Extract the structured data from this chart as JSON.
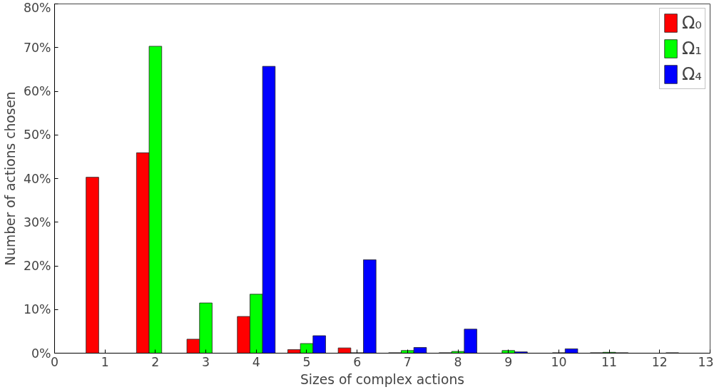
{
  "chart_data": {
    "type": "bar",
    "xlabel": "Sizes of complex actions",
    "ylabel": "Number of actions chosen",
    "x": [
      1,
      2,
      3,
      4,
      5,
      6,
      7,
      8,
      9,
      10,
      11,
      12
    ],
    "series": [
      {
        "name": "Ω₀",
        "color": "#ff0000",
        "values": [
          40.3,
          45.9,
          3.2,
          8.4,
          0.8,
          1.2,
          0.1,
          0.1,
          null,
          null,
          0.1,
          null
        ]
      },
      {
        "name": "Ω₁",
        "color": "#00ff00",
        "values": [
          null,
          70.3,
          11.5,
          13.5,
          2.2,
          0.1,
          0.6,
          0.4,
          0.6,
          0.1,
          0.2,
          null
        ]
      },
      {
        "name": "Ω₄",
        "color": "#0000ff",
        "values": [
          null,
          null,
          null,
          65.7,
          4.0,
          21.4,
          1.3,
          5.5,
          0.3,
          1.0,
          0.1,
          0.1
        ]
      }
    ],
    "xlim": [
      0,
      13
    ],
    "xticks": [
      0,
      1,
      2,
      3,
      4,
      5,
      6,
      7,
      8,
      9,
      10,
      11,
      12,
      13
    ],
    "ylim": [
      0,
      80
    ],
    "yticks": [
      {
        "value": 0,
        "label": "0%"
      },
      {
        "value": 10,
        "label": "10%"
      },
      {
        "value": 20,
        "label": "20%"
      },
      {
        "value": 30,
        "label": "30%"
      },
      {
        "value": 40,
        "label": "40%"
      },
      {
        "value": 50,
        "label": "50%"
      },
      {
        "value": 60,
        "label": "60%"
      },
      {
        "value": 70,
        "label": "70%"
      },
      {
        "value": 80,
        "label": "80%"
      }
    ],
    "grid": false,
    "legend": "top right"
  }
}
